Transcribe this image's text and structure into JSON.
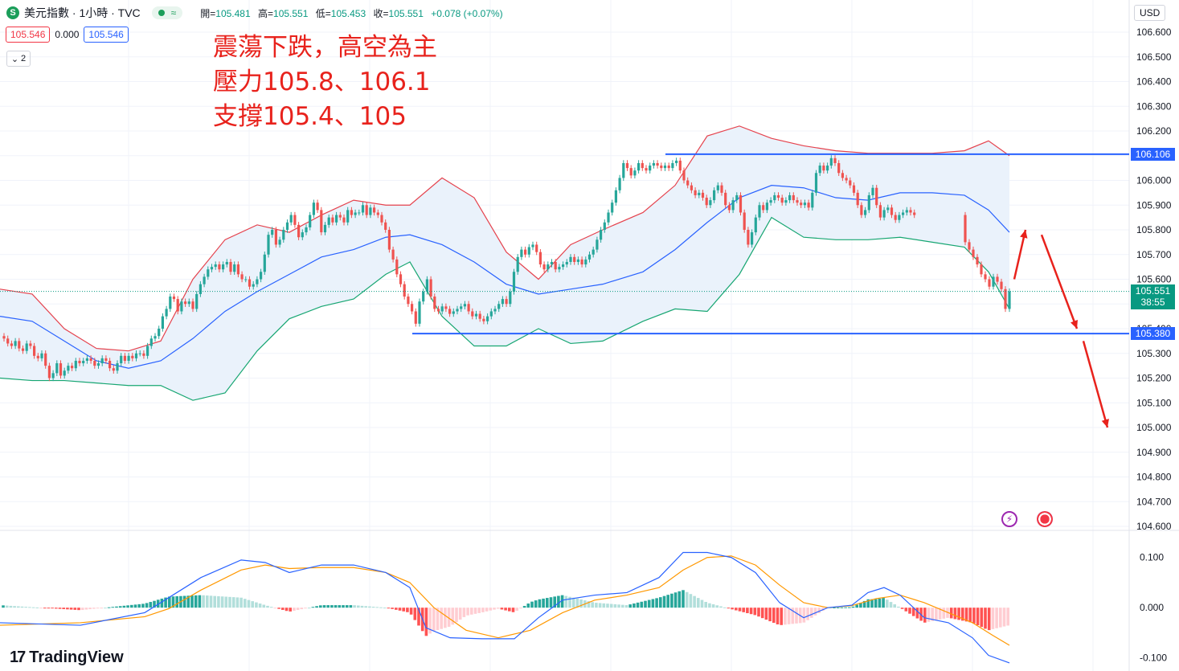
{
  "header": {
    "logo_letter": "S",
    "title": "美元指數 · 1小時 · TVC",
    "status_glyph": "≈",
    "ohlc": {
      "open_label": "開=",
      "open": "105.481",
      "high_label": "高=",
      "high": "105.551",
      "low_label": "低=",
      "low": "105.453",
      "close_label": "收=",
      "close": "105.551",
      "change": "+0.078 (+0.07%)"
    },
    "sell": "105.546",
    "spread": "0.000",
    "buy": "105.546",
    "collapse_count": "2"
  },
  "currency": "USD",
  "annotation": [
    "震蕩下跌，高空為主",
    "壓力105.8、106.1",
    "支撐105.4、105"
  ],
  "brand": "TradingView",
  "brand_mark": "17",
  "badges": {
    "current_price": "105.551",
    "countdown": "38:55",
    "resistance": "106.106",
    "support": "105.380"
  },
  "colors": {
    "up": "#26a69a",
    "down": "#ef5350",
    "bb_upper": "#e5424d",
    "bb_middle": "#2962ff",
    "bb_lower": "#17a672",
    "bb_fill": "#eaf2fb",
    "level_line": "#2962ff",
    "macd": "#2962ff",
    "signal": "#ff9800",
    "annotation": "#e8221c"
  },
  "icons": [
    "lightning-icon",
    "us-flag-icon",
    "chevron-down-icon",
    "tradingview-logo-icon"
  ],
  "chart_data": {
    "type": "candlestick",
    "price_axis": {
      "ticks": [
        "106.600",
        "106.500",
        "106.400",
        "106.300",
        "106.200",
        "106.100",
        "106.000",
        "105.900",
        "105.800",
        "105.700",
        "105.600",
        "105.500",
        "105.400",
        "105.300",
        "105.200",
        "105.100",
        "105.000",
        "104.900",
        "104.800",
        "104.700",
        "104.600"
      ],
      "range": [
        104.6,
        106.6
      ]
    },
    "levels": [
      106.106,
      105.38
    ],
    "projection": [
      [
        1262,
        105.6
      ],
      [
        1276,
        105.8
      ],
      [
        1296,
        105.78
      ],
      [
        1340,
        105.4
      ],
      [
        1348,
        105.35
      ],
      [
        1378,
        105.0
      ]
    ],
    "candle_start_x": 5,
    "candle_step": 4.7,
    "closes": [
      105.36,
      105.34,
      105.33,
      105.35,
      105.32,
      105.31,
      105.34,
      105.33,
      105.29,
      105.28,
      105.3,
      105.25,
      105.2,
      105.22,
      105.26,
      105.21,
      105.23,
      105.25,
      105.24,
      105.27,
      105.26,
      105.27,
      105.28,
      105.27,
      105.25,
      105.26,
      105.28,
      105.27,
      105.24,
      105.23,
      105.26,
      105.29,
      105.27,
      105.29,
      105.28,
      105.3,
      105.3,
      105.29,
      105.33,
      105.36,
      105.37,
      105.4,
      105.45,
      105.48,
      105.53,
      105.52,
      105.47,
      105.51,
      105.5,
      105.51,
      105.48,
      105.54,
      105.58,
      105.61,
      105.64,
      105.65,
      105.66,
      105.64,
      105.66,
      105.67,
      105.63,
      105.66,
      105.62,
      105.6,
      105.6,
      105.57,
      105.58,
      105.6,
      105.63,
      105.7,
      105.78,
      105.8,
      105.74,
      105.76,
      105.8,
      105.83,
      105.86,
      105.82,
      105.77,
      105.79,
      105.81,
      105.86,
      105.91,
      105.88,
      105.79,
      105.82,
      105.85,
      105.83,
      105.86,
      105.85,
      105.83,
      105.88,
      105.86,
      105.87,
      105.87,
      105.9,
      105.86,
      105.89,
      105.87,
      105.86,
      105.83,
      105.8,
      105.72,
      105.68,
      105.62,
      105.58,
      105.53,
      105.5,
      105.47,
      105.42,
      105.51,
      105.55,
      105.6,
      105.53,
      105.48,
      105.47,
      105.49,
      105.48,
      105.46,
      105.47,
      105.48,
      105.49,
      105.5,
      105.47,
      105.45,
      105.46,
      105.44,
      105.43,
      105.45,
      105.47,
      105.48,
      105.5,
      105.52,
      105.5,
      105.55,
      105.63,
      105.69,
      105.72,
      105.7,
      105.73,
      105.74,
      105.71,
      105.66,
      105.64,
      105.66,
      105.67,
      105.64,
      105.65,
      105.66,
      105.67,
      105.69,
      105.67,
      105.68,
      105.66,
      105.68,
      105.7,
      105.72,
      105.76,
      105.8,
      105.83,
      105.87,
      105.91,
      105.96,
      106.01,
      106.07,
      106.05,
      106.02,
      106.04,
      106.07,
      106.05,
      106.04,
      106.06,
      106.07,
      106.06,
      106.05,
      106.06,
      106.05,
      106.07,
      106.08,
      106.04,
      106.0,
      105.98,
      105.96,
      105.94,
      105.95,
      105.93,
      105.9,
      105.92,
      105.96,
      105.98,
      105.95,
      105.9,
      105.88,
      105.92,
      105.94,
      105.87,
      105.8,
      105.74,
      105.79,
      105.85,
      105.9,
      105.88,
      105.91,
      105.92,
      105.94,
      105.93,
      105.91,
      105.92,
      105.94,
      105.92,
      105.91,
      105.9,
      105.91,
      105.89,
      105.95,
      106.03,
      106.06,
      106.04,
      106.06,
      106.09,
      106.07,
      106.03,
      106.01,
      106.0,
      105.98,
      105.95,
      105.9,
      105.86,
      105.88,
      105.94,
      105.97,
      105.9,
      105.85,
      105.88,
      105.89,
      105.86,
      105.84,
      105.86,
      105.87,
      105.88,
      105.87,
      105.86
    ],
    "tail_x": [
      1201,
      1206,
      1211,
      1216,
      1221,
      1226,
      1231,
      1236,
      1241,
      1246,
      1251,
      1256
    ],
    "tail_closes": [
      105.75,
      105.72,
      105.69,
      105.66,
      105.62,
      105.6,
      105.57,
      105.61,
      105.59,
      105.56,
      105.48,
      105.551
    ],
    "bollinger": {
      "upper": [
        [
          0,
          105.56
        ],
        [
          40,
          105.54
        ],
        [
          80,
          105.4
        ],
        [
          120,
          105.32
        ],
        [
          160,
          105.31
        ],
        [
          200,
          105.35
        ],
        [
          240,
          105.6
        ],
        [
          280,
          105.76
        ],
        [
          320,
          105.82
        ],
        [
          360,
          105.79
        ],
        [
          400,
          105.86
        ],
        [
          440,
          105.92
        ],
        [
          480,
          105.9
        ],
        [
          510,
          105.9
        ],
        [
          550,
          106.01
        ],
        [
          590,
          105.93
        ],
        [
          630,
          105.71
        ],
        [
          670,
          105.6
        ],
        [
          710,
          105.74
        ],
        [
          750,
          105.8
        ],
        [
          800,
          105.87
        ],
        [
          840,
          105.98
        ],
        [
          880,
          106.18
        ],
        [
          920,
          106.22
        ],
        [
          960,
          106.17
        ],
        [
          1000,
          106.14
        ],
        [
          1040,
          106.12
        ],
        [
          1080,
          106.11
        ],
        [
          1120,
          106.11
        ],
        [
          1160,
          106.11
        ],
        [
          1200,
          106.12
        ],
        [
          1230,
          106.16
        ],
        [
          1256,
          106.1
        ]
      ],
      "middle": [
        [
          0,
          105.45
        ],
        [
          40,
          105.43
        ],
        [
          80,
          105.35
        ],
        [
          120,
          105.27
        ],
        [
          160,
          105.24
        ],
        [
          200,
          105.27
        ],
        [
          240,
          105.36
        ],
        [
          280,
          105.47
        ],
        [
          320,
          105.55
        ],
        [
          360,
          105.62
        ],
        [
          400,
          105.69
        ],
        [
          440,
          105.72
        ],
        [
          480,
          105.77
        ],
        [
          510,
          105.78
        ],
        [
          550,
          105.74
        ],
        [
          590,
          105.67
        ],
        [
          630,
          105.58
        ],
        [
          670,
          105.54
        ],
        [
          710,
          105.56
        ],
        [
          750,
          105.58
        ],
        [
          800,
          105.63
        ],
        [
          840,
          105.72
        ],
        [
          880,
          105.83
        ],
        [
          920,
          105.93
        ],
        [
          960,
          105.98
        ],
        [
          1000,
          105.97
        ],
        [
          1040,
          105.93
        ],
        [
          1080,
          105.92
        ],
        [
          1120,
          105.95
        ],
        [
          1160,
          105.95
        ],
        [
          1200,
          105.94
        ],
        [
          1230,
          105.88
        ],
        [
          1256,
          105.79
        ]
      ],
      "lower": [
        [
          0,
          105.2
        ],
        [
          40,
          105.19
        ],
        [
          80,
          105.19
        ],
        [
          120,
          105.18
        ],
        [
          160,
          105.17
        ],
        [
          200,
          105.17
        ],
        [
          240,
          105.11
        ],
        [
          280,
          105.14
        ],
        [
          320,
          105.31
        ],
        [
          360,
          105.44
        ],
        [
          400,
          105.49
        ],
        [
          440,
          105.52
        ],
        [
          480,
          105.62
        ],
        [
          510,
          105.67
        ],
        [
          550,
          105.45
        ],
        [
          590,
          105.33
        ],
        [
          630,
          105.33
        ],
        [
          670,
          105.4
        ],
        [
          710,
          105.34
        ],
        [
          750,
          105.35
        ],
        [
          800,
          105.43
        ],
        [
          840,
          105.48
        ],
        [
          880,
          105.47
        ],
        [
          920,
          105.62
        ],
        [
          960,
          105.85
        ],
        [
          1000,
          105.77
        ],
        [
          1040,
          105.76
        ],
        [
          1080,
          105.76
        ],
        [
          1120,
          105.77
        ],
        [
          1160,
          105.75
        ],
        [
          1200,
          105.73
        ],
        [
          1230,
          105.63
        ],
        [
          1256,
          105.48
        ]
      ]
    },
    "macd": {
      "ticks": [
        "0.100",
        "0.000",
        "-0.100"
      ],
      "range": [
        -0.115,
        0.13
      ],
      "macd_line": [
        [
          0,
          -0.03
        ],
        [
          100,
          -0.035
        ],
        [
          180,
          -0.01
        ],
        [
          210,
          0.02
        ],
        [
          250,
          0.06
        ],
        [
          300,
          0.095
        ],
        [
          330,
          0.09
        ],
        [
          360,
          0.07
        ],
        [
          400,
          0.085
        ],
        [
          440,
          0.085
        ],
        [
          480,
          0.07
        ],
        [
          510,
          0.04
        ],
        [
          530,
          -0.04
        ],
        [
          560,
          -0.06
        ],
        [
          600,
          -0.062
        ],
        [
          640,
          -0.062
        ],
        [
          670,
          -0.02
        ],
        [
          700,
          0.015
        ],
        [
          740,
          0.025
        ],
        [
          780,
          0.03
        ],
        [
          820,
          0.06
        ],
        [
          850,
          0.11
        ],
        [
          880,
          0.11
        ],
        [
          910,
          0.1
        ],
        [
          940,
          0.07
        ],
        [
          970,
          0.01
        ],
        [
          1000,
          -0.02
        ],
        [
          1030,
          0.0
        ],
        [
          1060,
          0.005
        ],
        [
          1080,
          0.03
        ],
        [
          1100,
          0.04
        ],
        [
          1120,
          0.025
        ],
        [
          1150,
          -0.02
        ],
        [
          1180,
          -0.03
        ],
        [
          1210,
          -0.06
        ],
        [
          1230,
          -0.095
        ],
        [
          1256,
          -0.11
        ]
      ],
      "signal_line": [
        [
          0,
          -0.035
        ],
        [
          100,
          -0.03
        ],
        [
          180,
          -0.018
        ],
        [
          210,
          -0.002
        ],
        [
          250,
          0.035
        ],
        [
          300,
          0.075
        ],
        [
          330,
          0.085
        ],
        [
          360,
          0.078
        ],
        [
          400,
          0.08
        ],
        [
          440,
          0.08
        ],
        [
          480,
          0.07
        ],
        [
          510,
          0.05
        ],
        [
          540,
          0.0
        ],
        [
          580,
          -0.045
        ],
        [
          620,
          -0.06
        ],
        [
          660,
          -0.045
        ],
        [
          700,
          -0.01
        ],
        [
          740,
          0.015
        ],
        [
          780,
          0.025
        ],
        [
          820,
          0.04
        ],
        [
          850,
          0.075
        ],
        [
          880,
          0.1
        ],
        [
          910,
          0.103
        ],
        [
          940,
          0.085
        ],
        [
          970,
          0.045
        ],
        [
          1000,
          0.01
        ],
        [
          1030,
          0.0
        ],
        [
          1060,
          0.004
        ],
        [
          1090,
          0.018
        ],
        [
          1120,
          0.025
        ],
        [
          1150,
          0.01
        ],
        [
          1180,
          -0.01
        ],
        [
          1210,
          -0.03
        ],
        [
          1235,
          -0.055
        ],
        [
          1256,
          -0.075
        ]
      ]
    }
  }
}
